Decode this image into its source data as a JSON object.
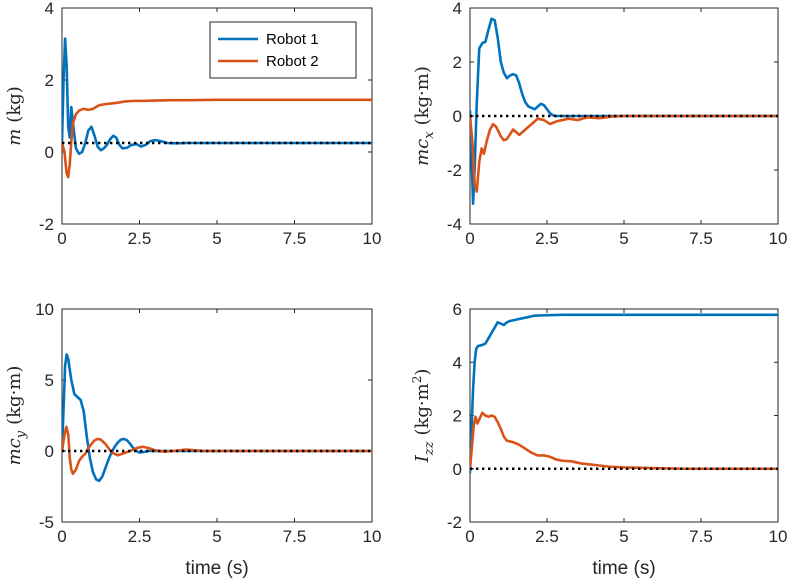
{
  "colors": {
    "robot1": "#0072BD",
    "robot2": "#D95319",
    "reference": "#000000",
    "axis": "#262626"
  },
  "chart_data": [
    {
      "type": "line",
      "id": "m",
      "ylabel": {
        "main": "m",
        "sub": "",
        "sup": "",
        "unit": "(kg)"
      },
      "xlabel": "",
      "xlim": [
        0,
        10
      ],
      "ylim": [
        -2,
        4
      ],
      "xticks": [
        "0",
        "2.5",
        "5",
        "7.5",
        "10"
      ],
      "yticks": [
        "4",
        "2",
        "0",
        "-2"
      ],
      "reference": 0.25,
      "legend": {
        "position": "top-right",
        "entries": [
          "Robot 1",
          "Robot 2"
        ]
      },
      "series": [
        {
          "name": "Robot 1",
          "x": [
            0,
            0.05,
            0.1,
            0.15,
            0.2,
            0.25,
            0.3,
            0.38,
            0.45,
            0.55,
            0.65,
            0.75,
            0.85,
            0.95,
            1.05,
            1.15,
            1.25,
            1.35,
            1.45,
            1.55,
            1.65,
            1.75,
            1.85,
            1.95,
            2.1,
            2.25,
            2.4,
            2.55,
            2.7,
            2.85,
            3.0,
            3.2,
            3.4,
            3.7,
            4.0,
            5,
            6,
            7,
            8,
            9,
            10
          ],
          "values": [
            0.25,
            2.0,
            3.15,
            2.4,
            0.7,
            0.4,
            1.25,
            0.6,
            0.1,
            -0.05,
            0.0,
            0.25,
            0.6,
            0.7,
            0.45,
            0.15,
            0.05,
            0.1,
            0.2,
            0.35,
            0.45,
            0.4,
            0.2,
            0.1,
            0.12,
            0.2,
            0.22,
            0.15,
            0.2,
            0.3,
            0.33,
            0.3,
            0.25,
            0.24,
            0.25,
            0.25,
            0.25,
            0.25,
            0.25,
            0.25,
            0.25
          ]
        },
        {
          "name": "Robot 2",
          "x": [
            0,
            0.08,
            0.15,
            0.2,
            0.25,
            0.3,
            0.35,
            0.45,
            0.55,
            0.7,
            0.85,
            1.0,
            1.2,
            1.4,
            1.6,
            1.8,
            2.0,
            2.3,
            2.6,
            3.0,
            3.5,
            4.0,
            5,
            6,
            7,
            8,
            9,
            10
          ],
          "values": [
            0.25,
            0.0,
            -0.6,
            -0.7,
            -0.35,
            0.3,
            0.8,
            1.05,
            1.15,
            1.2,
            1.17,
            1.2,
            1.3,
            1.33,
            1.35,
            1.37,
            1.4,
            1.42,
            1.42,
            1.43,
            1.44,
            1.44,
            1.45,
            1.45,
            1.45,
            1.45,
            1.45,
            1.45
          ]
        }
      ]
    },
    {
      "type": "line",
      "id": "mcx",
      "ylabel": {
        "main": "mc",
        "sub": "x",
        "sup": "",
        "unit": "(kg·m)"
      },
      "xlabel": "",
      "xlim": [
        0,
        10
      ],
      "ylim": [
        -4,
        4
      ],
      "xticks": [
        "0",
        "2.5",
        "5",
        "7.5",
        "10"
      ],
      "yticks": [
        "4",
        "2",
        "0",
        "-2",
        "-4"
      ],
      "reference": 0,
      "legend": null,
      "series": [
        {
          "name": "Robot 1",
          "x": [
            0,
            0.05,
            0.1,
            0.15,
            0.22,
            0.3,
            0.4,
            0.5,
            0.6,
            0.7,
            0.8,
            0.9,
            1.0,
            1.1,
            1.2,
            1.3,
            1.4,
            1.5,
            1.6,
            1.7,
            1.8,
            1.9,
            2.0,
            2.1,
            2.2,
            2.3,
            2.4,
            2.5,
            2.6,
            2.7,
            2.8,
            3.0,
            3.5,
            4,
            5,
            6,
            7,
            8,
            9,
            10
          ],
          "values": [
            0.2,
            -1.5,
            -3.25,
            -2.0,
            0.5,
            2.5,
            2.7,
            2.75,
            3.2,
            3.6,
            3.55,
            2.9,
            2.0,
            1.6,
            1.4,
            1.5,
            1.55,
            1.5,
            1.2,
            0.8,
            0.5,
            0.35,
            0.3,
            0.25,
            0.35,
            0.45,
            0.4,
            0.25,
            0.1,
            0.02,
            0.0,
            0.0,
            0.0,
            0.0,
            0.0,
            0.0,
            0.0,
            0.0,
            0.0,
            0.0
          ]
        },
        {
          "name": "Robot 2",
          "x": [
            0,
            0.08,
            0.15,
            0.22,
            0.3,
            0.38,
            0.45,
            0.55,
            0.65,
            0.75,
            0.85,
            1.0,
            1.1,
            1.2,
            1.4,
            1.6,
            1.8,
            2.0,
            2.2,
            2.4,
            2.6,
            2.8,
            3.0,
            3.2,
            3.5,
            3.8,
            4.2,
            4.6,
            5,
            6,
            7,
            8,
            9,
            10
          ],
          "values": [
            0,
            -1.0,
            -2.5,
            -2.8,
            -1.7,
            -1.2,
            -1.4,
            -0.9,
            -0.5,
            -0.3,
            -0.4,
            -0.75,
            -0.9,
            -0.85,
            -0.5,
            -0.7,
            -0.5,
            -0.3,
            -0.1,
            -0.15,
            -0.3,
            -0.2,
            -0.15,
            -0.1,
            -0.15,
            -0.05,
            -0.08,
            -0.02,
            0,
            0,
            0,
            0,
            0,
            0
          ]
        }
      ]
    },
    {
      "type": "line",
      "id": "mcy",
      "ylabel": {
        "main": "mc",
        "sub": "y",
        "sup": "",
        "unit": "(kg·m)"
      },
      "xlabel": "time (s)",
      "xlim": [
        0,
        10
      ],
      "ylim": [
        -5,
        10
      ],
      "xticks": [
        "0",
        "2.5",
        "5",
        "7.5",
        "10"
      ],
      "yticks": [
        "10",
        "5",
        "0",
        "-5"
      ],
      "reference": 0,
      "legend": null,
      "series": [
        {
          "name": "Robot 1",
          "x": [
            0,
            0.05,
            0.1,
            0.15,
            0.2,
            0.3,
            0.4,
            0.5,
            0.6,
            0.7,
            0.8,
            0.9,
            1.0,
            1.1,
            1.2,
            1.3,
            1.4,
            1.5,
            1.6,
            1.7,
            1.8,
            1.9,
            2.0,
            2.1,
            2.2,
            2.3,
            2.4,
            2.5,
            2.6,
            2.7,
            2.8,
            3.0,
            3.5,
            4,
            5,
            6,
            7,
            8,
            9,
            10
          ],
          "values": [
            0,
            3.0,
            6.0,
            6.8,
            6.5,
            5.0,
            4.0,
            3.8,
            3.6,
            2.8,
            1.0,
            -0.5,
            -1.5,
            -2.0,
            -2.1,
            -1.8,
            -1.2,
            -0.6,
            -0.1,
            0.3,
            0.6,
            0.8,
            0.85,
            0.75,
            0.5,
            0.2,
            0.0,
            -0.1,
            -0.08,
            -0.05,
            0.0,
            0.0,
            0.0,
            0.0,
            0.0,
            0.0,
            0.0,
            0.0,
            0.0,
            0.0
          ]
        },
        {
          "name": "Robot 2",
          "x": [
            0,
            0.07,
            0.14,
            0.2,
            0.25,
            0.3,
            0.35,
            0.45,
            0.55,
            0.65,
            0.75,
            0.85,
            0.95,
            1.05,
            1.15,
            1.25,
            1.4,
            1.6,
            1.8,
            2.0,
            2.2,
            2.4,
            2.6,
            2.8,
            3.0,
            3.3,
            3.6,
            4.0,
            4.3,
            4.6,
            5,
            6,
            7,
            8,
            9,
            10
          ],
          "values": [
            0,
            1.0,
            1.7,
            1.2,
            -0.5,
            -1.3,
            -1.6,
            -1.3,
            -0.7,
            -0.4,
            -0.2,
            0.2,
            0.5,
            0.75,
            0.85,
            0.8,
            0.5,
            -0.1,
            -0.3,
            -0.15,
            0.0,
            0.2,
            0.3,
            0.2,
            0.05,
            -0.05,
            0.0,
            0.1,
            0.05,
            0.0,
            0.0,
            0.0,
            0.0,
            0.0,
            0.0,
            0.0
          ]
        }
      ]
    },
    {
      "type": "line",
      "id": "izz",
      "ylabel": {
        "main": "I",
        "sub": "zz",
        "sup": "2",
        "unit": "(kg·m"
      },
      "xlabel": "time (s)",
      "xlim": [
        0,
        10
      ],
      "ylim": [
        -2,
        6
      ],
      "xticks": [
        "0",
        "2.5",
        "5",
        "7.5",
        "10"
      ],
      "yticks": [
        "6",
        "4",
        "2",
        "0",
        "-2"
      ],
      "reference": 0,
      "legend": null,
      "series": [
        {
          "name": "Robot 1",
          "x": [
            0,
            0.05,
            0.1,
            0.15,
            0.2,
            0.25,
            0.3,
            0.4,
            0.5,
            0.6,
            0.7,
            0.8,
            0.9,
            1.0,
            1.1,
            1.2,
            1.3,
            1.5,
            1.7,
            1.9,
            2.1,
            2.3,
            2.6,
            3.0,
            3.5,
            4,
            5,
            6,
            7,
            8,
            9,
            10
          ],
          "values": [
            -0.15,
            1.5,
            3.0,
            4.0,
            4.5,
            4.6,
            4.62,
            4.65,
            4.7,
            4.9,
            5.1,
            5.3,
            5.5,
            5.45,
            5.4,
            5.5,
            5.55,
            5.6,
            5.65,
            5.7,
            5.75,
            5.76,
            5.77,
            5.78,
            5.78,
            5.78,
            5.78,
            5.78,
            5.78,
            5.78,
            5.78,
            5.78
          ]
        },
        {
          "name": "Robot 2",
          "x": [
            0,
            0.06,
            0.12,
            0.18,
            0.24,
            0.3,
            0.4,
            0.5,
            0.6,
            0.7,
            0.8,
            0.9,
            1.0,
            1.1,
            1.2,
            1.4,
            1.6,
            1.8,
            2.0,
            2.2,
            2.4,
            2.6,
            2.8,
            3.0,
            3.3,
            3.6,
            4.0,
            4.5,
            5,
            6,
            7,
            8,
            9,
            10
          ],
          "values": [
            0,
            0.8,
            1.6,
            1.95,
            1.7,
            1.85,
            2.1,
            2.0,
            1.95,
            2.0,
            1.95,
            1.75,
            1.5,
            1.2,
            1.05,
            1.0,
            0.9,
            0.75,
            0.6,
            0.5,
            0.5,
            0.45,
            0.35,
            0.3,
            0.28,
            0.2,
            0.15,
            0.08,
            0.05,
            0.02,
            0.0,
            0.0,
            0.0,
            0.0
          ]
        }
      ]
    }
  ]
}
